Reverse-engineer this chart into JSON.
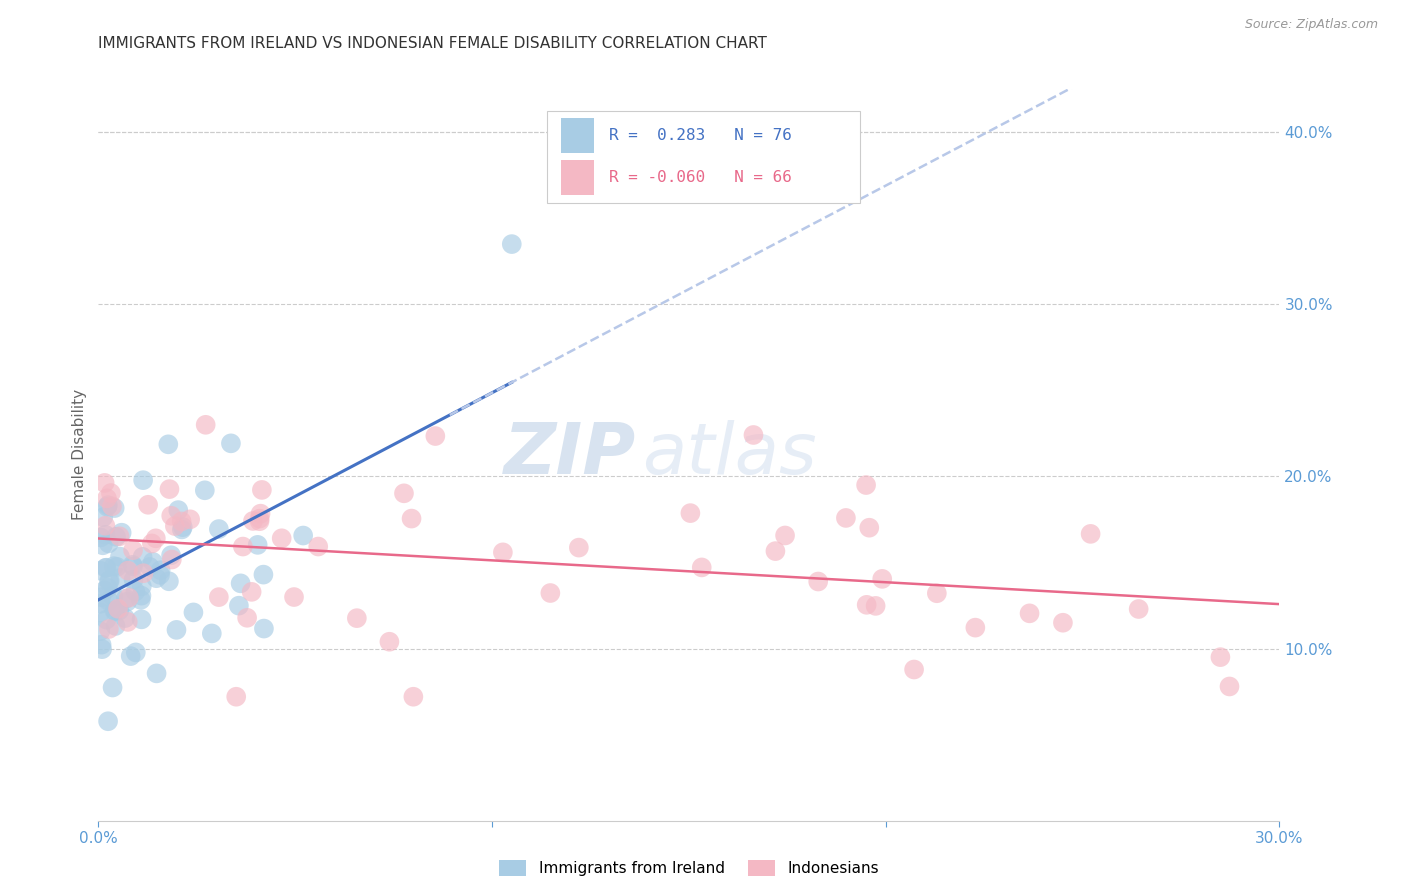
{
  "title": "IMMIGRANTS FROM IRELAND VS INDONESIAN FEMALE DISABILITY CORRELATION CHART",
  "source": "Source: ZipAtlas.com",
  "ylabel": "Female Disability",
  "right_yticks": [
    "40.0%",
    "30.0%",
    "20.0%",
    "10.0%"
  ],
  "right_ytick_vals": [
    0.4,
    0.3,
    0.2,
    0.1
  ],
  "xlim": [
    0.0,
    0.3
  ],
  "ylim": [
    0.0,
    0.425
  ],
  "color_ireland": "#a8cce4",
  "color_indonesian": "#f4b8c4",
  "color_ireland_line": "#4472c4",
  "color_indonesian_line": "#e8698a",
  "color_dashed_line": "#b8c8e8",
  "background_color": "#ffffff",
  "grid_color": "#cccccc",
  "axis_label_color": "#5b9bd5",
  "title_color": "#333333",
  "watermark_zip": "ZIP",
  "watermark_atlas": "atlas",
  "ireland_label": "Immigrants from Ireland",
  "indonesian_label": "Indonesians"
}
